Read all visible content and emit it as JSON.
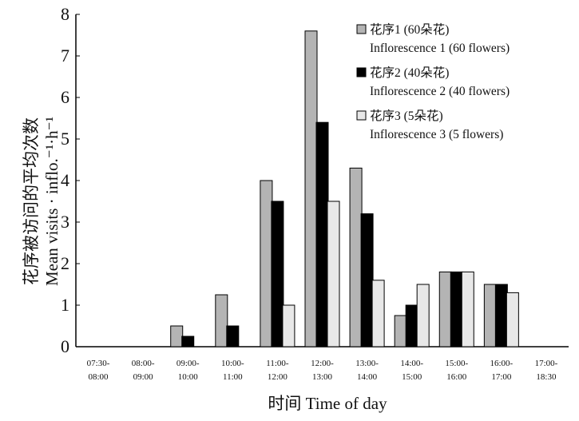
{
  "chart_data": {
    "type": "bar",
    "title": "",
    "xlabel": "时间 Time of day",
    "ylabel_cn": "花序被访问的平均次数",
    "ylabel_en": "Mean visits · inflo.⁻¹·h⁻¹",
    "ylim": [
      0,
      8
    ],
    "yticks": [
      "0",
      "1",
      "2",
      "3",
      "4",
      "5",
      "6",
      "7",
      "8"
    ],
    "categories": [
      [
        "07:30-",
        "08:00"
      ],
      [
        "08:00-",
        "09:00"
      ],
      [
        "09:00-",
        "10:00"
      ],
      [
        "10:00-",
        "11:00"
      ],
      [
        "11:00-",
        "12:00"
      ],
      [
        "12:00-",
        "13:00"
      ],
      [
        "13:00-",
        "14:00"
      ],
      [
        "14:00-",
        "15:00"
      ],
      [
        "15:00-",
        "16:00"
      ],
      [
        "16:00-",
        "17:00"
      ],
      [
        "17:00-",
        "18:30"
      ]
    ],
    "legend_position": "top-right",
    "series": [
      {
        "name": "花序1 (60朵花)",
        "name_en": "Inflorescence 1 (60 flowers)",
        "color": "#b4b4b4",
        "values": [
          0,
          0,
          0.5,
          1.25,
          4.0,
          7.6,
          4.3,
          0.75,
          1.8,
          1.5,
          0
        ]
      },
      {
        "name": "花序2 (40朵花)",
        "name_en": "Inflorescence 2 (40 flowers)",
        "color": "#000000",
        "values": [
          0,
          0,
          0.25,
          0.5,
          3.5,
          5.4,
          3.2,
          1.0,
          1.8,
          1.5,
          0
        ]
      },
      {
        "name": "花序3 (5朵花)",
        "name_en": "Inflorescence 3 (5 flowers)",
        "color": "#e8e8e8",
        "values": [
          0,
          0,
          0,
          0,
          1.0,
          3.5,
          1.6,
          1.5,
          1.8,
          1.3,
          0
        ]
      }
    ]
  }
}
